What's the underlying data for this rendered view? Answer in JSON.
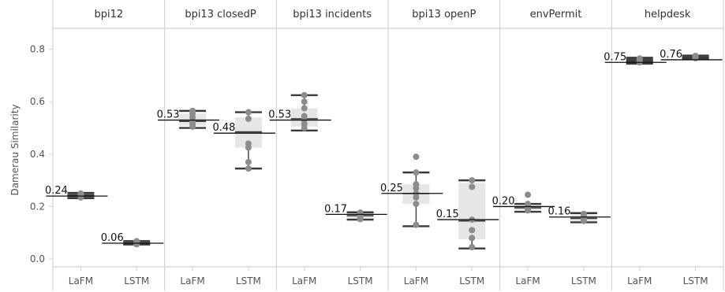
{
  "chart_data": {
    "type": "box",
    "ylabel": "Damerau Similarity",
    "ylim": [
      -0.03,
      0.88
    ],
    "yticks": [
      0.0,
      0.2,
      0.4,
      0.6,
      0.8
    ],
    "ytick_labels": [
      "0.0",
      "0.2",
      "0.4",
      "0.6",
      "0.8"
    ],
    "grid": false,
    "facets": [
      {
        "title": "bpi12",
        "groups": [
          {
            "category": "LaFM",
            "mean": 0.24,
            "mean_label": "0.24",
            "min": 0.232,
            "q1": 0.236,
            "median": 0.24,
            "q3": 0.248,
            "max": 0.252,
            "points": [
              0.235,
              0.238,
              0.241,
              0.244,
              0.247,
              0.25
            ]
          },
          {
            "category": "LSTM",
            "mean": 0.06,
            "mean_label": "0.06",
            "min": 0.055,
            "q1": 0.057,
            "median": 0.06,
            "q3": 0.064,
            "max": 0.068,
            "points": [
              0.056,
              0.058,
              0.06,
              0.062,
              0.065,
              0.068
            ]
          }
        ]
      },
      {
        "title": "bpi13 closedP",
        "groups": [
          {
            "category": "LaFM",
            "mean": 0.53,
            "mean_label": "0.53",
            "min": 0.5,
            "q1": 0.508,
            "median": 0.525,
            "q3": 0.555,
            "max": 0.565,
            "points": [
              0.505,
              0.515,
              0.525,
              0.54,
              0.555,
              0.565
            ]
          },
          {
            "category": "LSTM",
            "mean": 0.48,
            "mean_label": "0.48",
            "min": 0.345,
            "q1": 0.425,
            "median": 0.485,
            "q3": 0.54,
            "max": 0.56,
            "points": [
              0.345,
              0.37,
              0.425,
              0.44,
              0.535,
              0.56
            ]
          }
        ]
      },
      {
        "title": "bpi13 incidents",
        "groups": [
          {
            "category": "LaFM",
            "mean": 0.53,
            "mean_label": "0.53",
            "min": 0.49,
            "q1": 0.505,
            "median": 0.535,
            "q3": 0.575,
            "max": 0.625,
            "points": [
              0.5,
              0.515,
              0.53,
              0.545,
              0.575,
              0.6,
              0.625
            ]
          },
          {
            "category": "LSTM",
            "mean": 0.17,
            "mean_label": "0.17",
            "min": 0.15,
            "q1": 0.153,
            "median": 0.165,
            "q3": 0.175,
            "max": 0.178,
            "points": [
              0.152,
              0.158,
              0.165,
              0.172,
              0.177
            ]
          }
        ]
      },
      {
        "title": "bpi13 openP",
        "groups": [
          {
            "category": "LaFM",
            "mean": 0.25,
            "mean_label": "0.25",
            "min": 0.125,
            "q1": 0.21,
            "median": 0.25,
            "q3": 0.285,
            "max": 0.33,
            "points": [
              0.13,
              0.21,
              0.235,
              0.25,
              0.27,
              0.285,
              0.33,
              0.39
            ]
          },
          {
            "category": "LSTM",
            "mean": 0.15,
            "mean_label": "0.15",
            "min": 0.04,
            "q1": 0.075,
            "median": 0.145,
            "q3": 0.29,
            "max": 0.3,
            "points": [
              0.045,
              0.08,
              0.11,
              0.15,
              0.275,
              0.3
            ]
          }
        ]
      },
      {
        "title": "envPermit",
        "groups": [
          {
            "category": "LaFM",
            "mean": 0.2,
            "mean_label": "0.20",
            "min": 0.18,
            "q1": 0.186,
            "median": 0.195,
            "q3": 0.205,
            "max": 0.21,
            "points": [
              0.185,
              0.19,
              0.195,
              0.2,
              0.21,
              0.245
            ]
          },
          {
            "category": "LSTM",
            "mean": 0.16,
            "mean_label": "0.16",
            "min": 0.14,
            "q1": 0.145,
            "median": 0.155,
            "q3": 0.17,
            "max": 0.175,
            "points": [
              0.145,
              0.152,
              0.158,
              0.165,
              0.172
            ]
          }
        ]
      },
      {
        "title": "helpdesk",
        "groups": [
          {
            "category": "LaFM",
            "mean": 0.75,
            "mean_label": "0.75",
            "min": 0.745,
            "q1": 0.748,
            "median": 0.755,
            "q3": 0.765,
            "max": 0.768,
            "points": [
              0.75,
              0.755,
              0.76,
              0.765
            ]
          },
          {
            "category": "LSTM",
            "mean": 0.76,
            "mean_label": "0.76",
            "min": 0.763,
            "q1": 0.765,
            "median": 0.768,
            "q3": 0.773,
            "max": 0.776,
            "points": [
              0.766,
              0.769,
              0.772,
              0.775
            ]
          }
        ]
      }
    ]
  },
  "colors": {
    "panel_border": "#d4d4d4",
    "box_light": "#e6e6e6",
    "box_dark": "#404040",
    "whisker": "#3a3a3a",
    "point": "#8c8c8c",
    "mean_line": "#111111"
  }
}
